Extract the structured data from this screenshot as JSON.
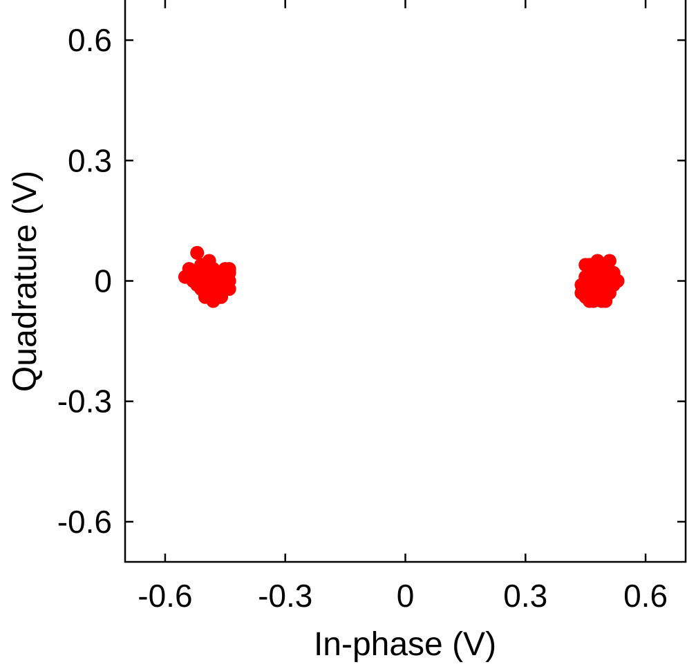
{
  "chart_data": {
    "type": "scatter",
    "xlabel": "In-phase (V)",
    "ylabel": "Quadrature (V)",
    "xlim": [
      -0.7,
      0.7
    ],
    "ylim": [
      -0.7,
      0.7
    ],
    "xticks": [
      -0.6,
      -0.3,
      0,
      0.3,
      0.6
    ],
    "yticks": [
      -0.6,
      -0.3,
      0,
      0.3,
      0.6
    ],
    "xtick_labels": [
      "-0.6",
      "-0.3",
      "0",
      "0.3",
      "0.6"
    ],
    "ytick_labels": [
      "-0.6",
      "-0.3",
      "0",
      "0.3",
      "0.6"
    ],
    "grid": false,
    "marker_color": "#ff0000",
    "series": [
      {
        "points": [
          [
            -0.52,
            0.07
          ],
          [
            -0.51,
            0.04
          ],
          [
            -0.53,
            0.02
          ],
          [
            -0.55,
            0.01
          ],
          [
            -0.54,
            0.03
          ],
          [
            -0.52,
            -0.01
          ],
          [
            -0.5,
            0.02
          ],
          [
            -0.49,
            0.05
          ],
          [
            -0.5,
            -0.01
          ],
          [
            -0.48,
            0.0
          ],
          [
            -0.47,
            0.02
          ],
          [
            -0.46,
            0.01
          ],
          [
            -0.45,
            0.03
          ],
          [
            -0.45,
            -0.01
          ],
          [
            -0.44,
            0.0
          ],
          [
            -0.44,
            0.03
          ],
          [
            -0.45,
            -0.02
          ],
          [
            -0.46,
            -0.04
          ],
          [
            -0.47,
            -0.03
          ],
          [
            -0.48,
            -0.05
          ],
          [
            -0.49,
            -0.03
          ],
          [
            -0.5,
            -0.04
          ],
          [
            -0.51,
            -0.02
          ],
          [
            -0.49,
            0.01
          ],
          [
            -0.47,
            -0.01
          ],
          [
            -0.46,
            -0.02
          ],
          [
            -0.44,
            -0.02
          ],
          [
            -0.48,
            0.03
          ],
          [
            -0.5,
            0.0
          ],
          [
            -0.52,
            0.01
          ],
          [
            -0.53,
            0.0
          ],
          [
            -0.51,
            0.02
          ],
          [
            -0.48,
            -0.02
          ],
          [
            -0.46,
            0.0
          ],
          [
            -0.44,
            0.02
          ]
        ]
      },
      {
        "points": [
          [
            0.45,
            0.04
          ],
          [
            0.46,
            0.02
          ],
          [
            0.45,
            0.0
          ],
          [
            0.44,
            -0.03
          ],
          [
            0.45,
            -0.04
          ],
          [
            0.46,
            -0.05
          ],
          [
            0.47,
            -0.02
          ],
          [
            0.47,
            0.03
          ],
          [
            0.48,
            0.05
          ],
          [
            0.48,
            0.0
          ],
          [
            0.48,
            -0.03
          ],
          [
            0.49,
            -0.05
          ],
          [
            0.5,
            -0.04
          ],
          [
            0.49,
            0.01
          ],
          [
            0.5,
            0.03
          ],
          [
            0.51,
            0.05
          ],
          [
            0.5,
            -0.01
          ],
          [
            0.51,
            -0.03
          ],
          [
            0.52,
            -0.01
          ],
          [
            0.53,
            0.0
          ],
          [
            0.52,
            0.02
          ],
          [
            0.51,
            0.01
          ],
          [
            0.49,
            0.03
          ],
          [
            0.47,
            0.01
          ],
          [
            0.46,
            -0.01
          ],
          [
            0.45,
            0.01
          ],
          [
            0.47,
            -0.04
          ],
          [
            0.49,
            -0.02
          ],
          [
            0.48,
            0.02
          ],
          [
            0.5,
            0.0
          ],
          [
            0.46,
            0.04
          ],
          [
            0.44,
            -0.01
          ],
          [
            0.47,
            -0.05
          ],
          [
            0.5,
            -0.05
          ],
          [
            0.48,
            0.04
          ]
        ]
      }
    ]
  }
}
